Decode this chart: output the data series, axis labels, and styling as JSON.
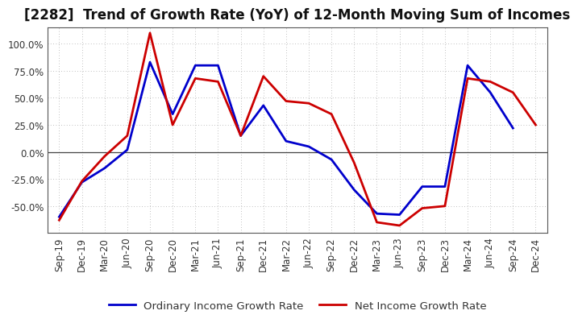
{
  "title": "[2282]  Trend of Growth Rate (YoY) of 12-Month Moving Sum of Incomes",
  "background_color": "#ffffff",
  "grid_color": "#aaaaaa",
  "x_labels": [
    "Sep-19",
    "Dec-19",
    "Mar-20",
    "Jun-20",
    "Sep-20",
    "Dec-20",
    "Mar-21",
    "Jun-21",
    "Sep-21",
    "Dec-21",
    "Mar-22",
    "Jun-22",
    "Sep-22",
    "Dec-22",
    "Mar-23",
    "Jun-23",
    "Sep-23",
    "Dec-23",
    "Mar-24",
    "Jun-24",
    "Sep-24",
    "Dec-24"
  ],
  "ordinary_income": [
    -60,
    -28,
    -15,
    2,
    83,
    35,
    80,
    80,
    15,
    43,
    10,
    5,
    -7,
    -35,
    -57,
    -58,
    -32,
    -32,
    80,
    55,
    22,
    null
  ],
  "net_income": [
    -63,
    -27,
    -4,
    15,
    110,
    25,
    68,
    65,
    15,
    70,
    47,
    45,
    35,
    -10,
    -65,
    -68,
    -52,
    -50,
    68,
    65,
    55,
    25
  ],
  "ylim": [
    -75,
    115
  ],
  "yticks": [
    -50,
    -25,
    0,
    25,
    50,
    75,
    100
  ],
  "ordinary_color": "#0000cc",
  "net_color": "#cc0000",
  "line_width": 2.0,
  "title_fontsize": 12,
  "tick_fontsize": 8.5,
  "legend_fontsize": 9.5
}
